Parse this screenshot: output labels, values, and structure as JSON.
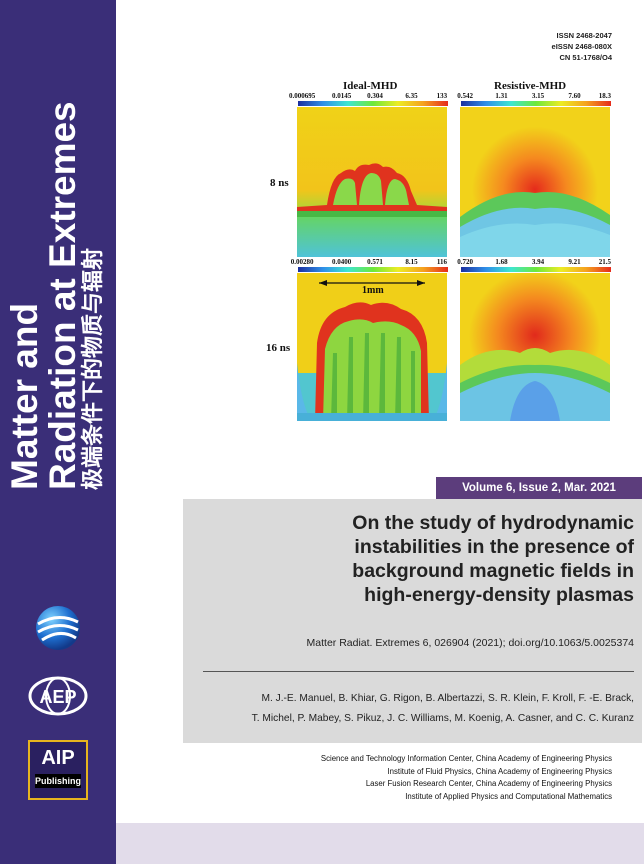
{
  "spine": {
    "title_line1": "Matter and",
    "title_line2": "Radiation at Extremes",
    "title_cn": "极端条件下的物质与辐射",
    "color": "#3a2e78"
  },
  "logos": {
    "globe": "globe-logo",
    "caep": "caep-logo",
    "aip_main": "AIP",
    "aip_sub": "Publishing"
  },
  "issn": {
    "line1": "ISSN 2468-2047",
    "line2": "eISSN 2468-080X",
    "line3": "CN 51-1768/O4"
  },
  "figure": {
    "col_left_title": "Ideal-MHD",
    "col_right_title": "Resistive-MHD",
    "row1_label": "8 ns",
    "row2_label": "16 ns",
    "scale_label": "1mm",
    "cbar_top_left": [
      "0.000695",
      "0.0145",
      "0.304",
      "6.35",
      "133"
    ],
    "cbar_top_right": [
      "0.542",
      "1.31",
      "3.15",
      "7.60",
      "18.3"
    ],
    "cbar_bottom_left": [
      "0.00280",
      "0.0400",
      "0.571",
      "8.15",
      "116"
    ],
    "cbar_bottom_right": [
      "0.720",
      "1.68",
      "3.94",
      "9.21",
      "21.5"
    ]
  },
  "volume": "Volume 6, Issue 2, Mar. 2021",
  "article": {
    "title_line1": "On the study of hydrodynamic",
    "title_line2": "instabilities in the presence of",
    "title_line3": "background magnetic fields in",
    "title_line4": "high-energy-density plasmas",
    "citation": "Matter Radiat. Extremes 6, 026904 (2021); doi.org/10.1063/5.0025374",
    "authors_line1": "M. J.-E. Manuel, B. Khiar, G. Rigon, B. Albertazzi, S. R. Klein, F. Kroll, F. -E. Brack,",
    "authors_line2": "T. Michel, P. Mabey, S. Pikuz, J. C. Williams, M. Koenig, A. Casner, and C. C. Kuranz"
  },
  "affiliations": [
    "Science and Technology Information Center, China Academy of Engineering Physics",
    "Institute of Fluid Physics, China Academy of Engineering Physics",
    "Laser Fusion Research Center, China Academy of Engineering Physics",
    "Institute of Applied Physics and Computational Mathematics"
  ],
  "colors": {
    "accent_purple": "#5c3d7c",
    "box_gray": "#dadada",
    "aip_border": "#e6b51e"
  }
}
